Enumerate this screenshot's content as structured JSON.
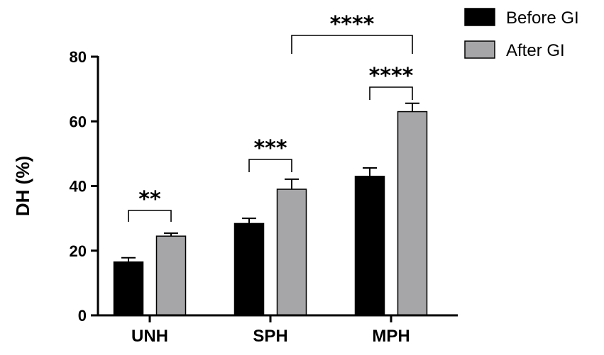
{
  "chart_data": {
    "type": "bar",
    "ylabel": "DH (%)",
    "xlabel": "",
    "ylim": [
      0,
      80
    ],
    "yticks": [
      "0",
      "20",
      "40",
      "60",
      "80"
    ],
    "categories": [
      "UNH",
      "SPH",
      "MPH"
    ],
    "series": [
      {
        "name": "Before GI",
        "color": "#000000",
        "values": [
          16.5,
          28.4,
          43.0
        ],
        "errors": [
          1.3,
          1.6,
          2.6
        ]
      },
      {
        "name": "After GI",
        "color": "#a6a6a8",
        "values": [
          24.5,
          39.0,
          63.0
        ],
        "errors": [
          0.9,
          3.1,
          2.6
        ]
      }
    ],
    "legend_position": "top-right",
    "significance": [
      {
        "label": "**",
        "from": "UNH Before GI",
        "to": "UNH After GI"
      },
      {
        "label": "***",
        "from": "SPH Before GI",
        "to": "SPH After GI"
      },
      {
        "label": "****",
        "from": "MPH Before GI",
        "to": "MPH After GI"
      },
      {
        "label": "****",
        "from": "SPH After GI",
        "to": "MPH After GI"
      }
    ]
  }
}
